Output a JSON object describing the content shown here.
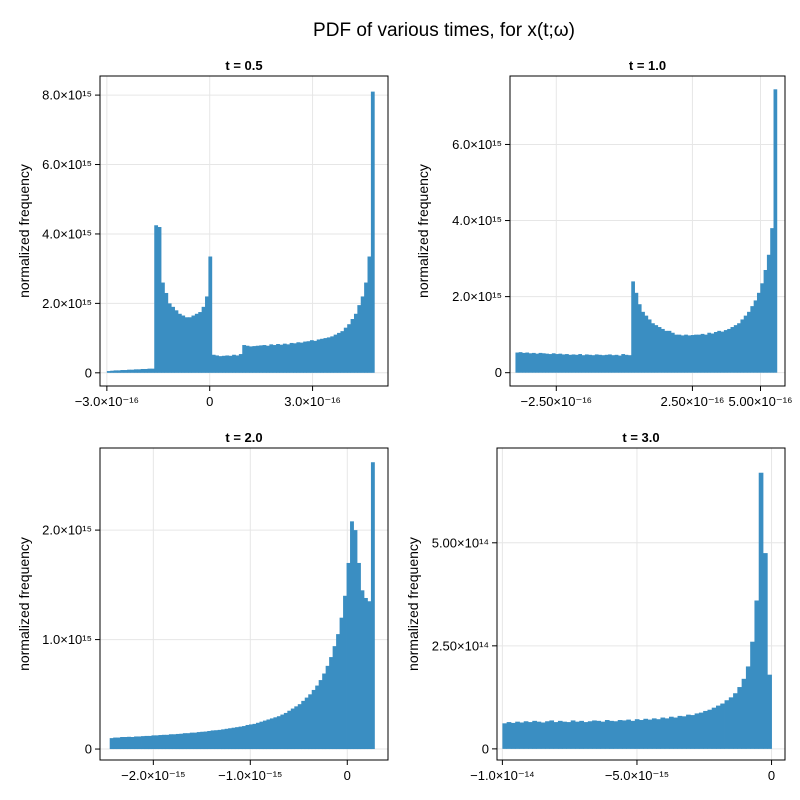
{
  "figure": {
    "title": "PDF of various times, for x(t;ω)",
    "bar_color": "#3a8ec2"
  },
  "chart_data": [
    {
      "type": "histogram",
      "title": "t = 0.5",
      "ylabel": "normalized frequency",
      "xlim": [
        -3.2e-16,
        5.2e-16
      ],
      "ylim": [
        -380000000000000.0,
        8550000000000000.0
      ],
      "xticks": [
        -3e-16,
        0,
        3e-16
      ],
      "xtick_labels": [
        "−3.0×10⁻¹⁶",
        "0",
        "3.0×10⁻¹⁶"
      ],
      "yticks": [
        0,
        2000000000000000.0,
        4000000000000000.0,
        6000000000000000.0,
        8000000000000000.0
      ],
      "ytick_labels": [
        "0",
        "2.0×10¹⁵",
        "4.0×10¹⁵",
        "6.0×10¹⁵",
        "8.0×10¹⁵"
      ],
      "bin_start": -3e-16,
      "bin_end": 4.8e-16,
      "values": [
        50000000000000.0,
        60000000000000.0,
        70000000000000.0,
        70000000000000.0,
        80000000000000.0,
        80000000000000.0,
        90000000000000.0,
        90000000000000.0,
        100000000000000.0,
        100000000000000.0,
        110000000000000.0,
        110000000000000.0,
        120000000000000.0,
        120000000000000.0,
        4250000000000000.0,
        4200000000000000.0,
        2600000000000000.0,
        2300000000000000.0,
        2000000000000000.0,
        1900000000000000.0,
        1800000000000000.0,
        1700000000000000.0,
        1650000000000000.0,
        1600000000000000.0,
        1600000000000000.0,
        1650000000000000.0,
        1700000000000000.0,
        1750000000000000.0,
        1900000000000000.0,
        2200000000000000.0,
        3350000000000000.0,
        520000000000000.0,
        500000000000000.0,
        480000000000000.0,
        490000000000000.0,
        500000000000000.0,
        490000000000000.0,
        520000000000000.0,
        500000000000000.0,
        540000000000000.0,
        800000000000000.0,
        780000000000000.0,
        760000000000000.0,
        770000000000000.0,
        780000000000000.0,
        790000000000000.0,
        800000000000000.0,
        780000000000000.0,
        820000000000000.0,
        800000000000000.0,
        830000000000000.0,
        810000000000000.0,
        840000000000000.0,
        820000000000000.0,
        860000000000000.0,
        850000000000000.0,
        880000000000000.0,
        870000000000000.0,
        900000000000000.0,
        910000000000000.0,
        940000000000000.0,
        920000000000000.0,
        960000000000000.0,
        980000000000000.0,
        1000000000000000.0,
        1020000000000000.0,
        1050000000000000.0,
        1100000000000000.0,
        1150000000000000.0,
        1200000000000000.0,
        1300000000000000.0,
        1400000000000000.0,
        1550000000000000.0,
        1700000000000000.0,
        1950000000000000.0,
        2200000000000000.0,
        2600000000000000.0,
        3350000000000000.0,
        8100000000000000.0
      ]
    },
    {
      "type": "histogram",
      "title": "t = 1.0",
      "ylabel": "normalized frequency",
      "xlim": [
        -4.2e-16,
        5.9e-16
      ],
      "ylim": [
        -350000000000000.0,
        7800000000000000.0
      ],
      "xticks": [
        -2.5e-16,
        2.5e-16,
        5e-16
      ],
      "xtick_labels": [
        "−2.50×10⁻¹⁶",
        "2.50×10⁻¹⁶",
        "5.00×10⁻¹⁶"
      ],
      "yticks": [
        0,
        2000000000000000.0,
        4000000000000000.0,
        6000000000000000.0
      ],
      "ytick_labels": [
        "0",
        "2.0×10¹⁵",
        "4.0×10¹⁵",
        "6.0×10¹⁵"
      ],
      "bin_start": -4e-16,
      "bin_end": 5.6e-16,
      "values": [
        530000000000000.0,
        540000000000000.0,
        520000000000000.0,
        530000000000000.0,
        510000000000000.0,
        520000000000000.0,
        500000000000000.0,
        520000000000000.0,
        510000000000000.0,
        500000000000000.0,
        490000000000000.0,
        510000000000000.0,
        490000000000000.0,
        500000000000000.0,
        480000000000000.0,
        490000000000000.0,
        470000000000000.0,
        480000000000000.0,
        470000000000000.0,
        490000000000000.0,
        460000000000000.0,
        480000000000000.0,
        470000000000000.0,
        460000000000000.0,
        480000000000000.0,
        470000000000000.0,
        460000000000000.0,
        470000000000000.0,
        480000000000000.0,
        460000000000000.0,
        470000000000000.0,
        450000000000000.0,
        490000000000000.0,
        470000000000000.0,
        460000000000000.0,
        2400000000000000.0,
        2100000000000000.0,
        1800000000000000.0,
        1600000000000000.0,
        1500000000000000.0,
        1400000000000000.0,
        1300000000000000.0,
        1250000000000000.0,
        1200000000000000.0,
        1150000000000000.0,
        1100000000000000.0,
        1100000000000000.0,
        1050000000000000.0,
        1000000000000000.0,
        1000000000000000.0,
        980000000000000.0,
        1000000000000000.0,
        980000000000000.0,
        990000000000000.0,
        1000000000000000.0,
        1000000000000000.0,
        1020000000000000.0,
        1000000000000000.0,
        1050000000000000.0,
        1030000000000000.0,
        1070000000000000.0,
        1100000000000000.0,
        1080000000000000.0,
        1120000000000000.0,
        1150000000000000.0,
        1200000000000000.0,
        1250000000000000.0,
        1300000000000000.0,
        1400000000000000.0,
        1500000000000000.0,
        1600000000000000.0,
        1750000000000000.0,
        1900000000000000.0,
        2100000000000000.0,
        2350000000000000.0,
        2700000000000000.0,
        3100000000000000.0,
        3800000000000000.0,
        7450000000000000.0
      ]
    },
    {
      "type": "histogram",
      "title": "t = 2.0",
      "ylabel": "normalized frequency",
      "xlim": [
        -2.55e-15,
        4.2e-16
      ],
      "ylim": [
        -100000000000000.0,
        2750000000000000.0
      ],
      "xticks": [
        -2e-15,
        -1e-15,
        0
      ],
      "xtick_labels": [
        "−2.0×10⁻¹⁵",
        "−1.0×10⁻¹⁵",
        "0"
      ],
      "yticks": [
        0,
        1000000000000000.0,
        2000000000000000.0
      ],
      "ytick_labels": [
        "0",
        "1.0×10¹⁵",
        "2.0×10¹⁵"
      ],
      "bin_start": -2.45e-15,
      "bin_end": 2.8e-16,
      "values": [
        100000000000000.0,
        105000000000000.0,
        105000000000000.0,
        110000000000000.0,
        110000000000000.0,
        112000000000000.0,
        110000000000000.0,
        115000000000000.0,
        115000000000000.0,
        118000000000000.0,
        120000000000000.0,
        120000000000000.0,
        125000000000000.0,
        125000000000000.0,
        128000000000000.0,
        130000000000000.0,
        130000000000000.0,
        135000000000000.0,
        135000000000000.0,
        138000000000000.0,
        140000000000000.0,
        145000000000000.0,
        145000000000000.0,
        150000000000000.0,
        150000000000000.0,
        155000000000000.0,
        158000000000000.0,
        160000000000000.0,
        165000000000000.0,
        170000000000000.0,
        172000000000000.0,
        175000000000000.0,
        180000000000000.0,
        185000000000000.0,
        190000000000000.0,
        195000000000000.0,
        200000000000000.0,
        205000000000000.0,
        210000000000000.0,
        220000000000000.0,
        225000000000000.0,
        230000000000000.0,
        240000000000000.0,
        250000000000000.0,
        260000000000000.0,
        270000000000000.0,
        280000000000000.0,
        290000000000000.0,
        300000000000000.0,
        315000000000000.0,
        330000000000000.0,
        350000000000000.0,
        370000000000000.0,
        390000000000000.0,
        410000000000000.0,
        440000000000000.0,
        470000000000000.0,
        500000000000000.0,
        540000000000000.0,
        580000000000000.0,
        630000000000000.0,
        690000000000000.0,
        760000000000000.0,
        840000000000000.0,
        940000000000000.0,
        1050000000000000.0,
        1200000000000000.0,
        1400000000000000.0,
        1700000000000000.0,
        2080000000000000.0,
        2000000000000000.0,
        1700000000000000.0,
        1450000000000000.0,
        1380000000000000.0,
        1350000000000000.0,
        2620000000000000.0
      ]
    },
    {
      "type": "histogram",
      "title": "t = 3.0",
      "ylabel": "normalized frequency",
      "xlim": [
        -1.02e-14,
        5e-16
      ],
      "ylim": [
        -27000000000000.0,
        730000000000000.0
      ],
      "xticks": [
        -1e-14,
        -5e-15,
        0
      ],
      "xtick_labels": [
        "−1.0×10⁻¹⁴",
        "−5.0×10⁻¹⁵",
        "0"
      ],
      "yticks": [
        0,
        250000000000000.0,
        500000000000000.0
      ],
      "ytick_labels": [
        "0",
        "2.50×10¹⁴",
        "5.00×10¹⁴"
      ],
      "bin_start": -1e-14,
      "bin_end": 0,
      "values": [
        62000000000000.0,
        65000000000000.0,
        63000000000000.0,
        66000000000000.0,
        64000000000000.0,
        67000000000000.0,
        65000000000000.0,
        68000000000000.0,
        66000000000000.0,
        64000000000000.0,
        67000000000000.0,
        69000000000000.0,
        65000000000000.0,
        68000000000000.0,
        66000000000000.0,
        65000000000000.0,
        69000000000000.0,
        66000000000000.0,
        68000000000000.0,
        65000000000000.0,
        67000000000000.0,
        69000000000000.0,
        68000000000000.0,
        66000000000000.0,
        70000000000000.0,
        68000000000000.0,
        67000000000000.0,
        70000000000000.0,
        69000000000000.0,
        71000000000000.0,
        68000000000000.0,
        72000000000000.0,
        70000000000000.0,
        73000000000000.0,
        71000000000000.0,
        74000000000000.0,
        72000000000000.0,
        76000000000000.0,
        74000000000000.0,
        78000000000000.0,
        76000000000000.0,
        80000000000000.0,
        79000000000000.0,
        83000000000000.0,
        82000000000000.0,
        86000000000000.0,
        88000000000000.0,
        92000000000000.0,
        95000000000000.0,
        100000000000000.0,
        105000000000000.0,
        110000000000000.0,
        118000000000000.0,
        125000000000000.0,
        135000000000000.0,
        150000000000000.0,
        170000000000000.0,
        200000000000000.0,
        260000000000000.0,
        360000000000000.0,
        670000000000000.0,
        475000000000000.0,
        180000000000000.0
      ]
    }
  ]
}
